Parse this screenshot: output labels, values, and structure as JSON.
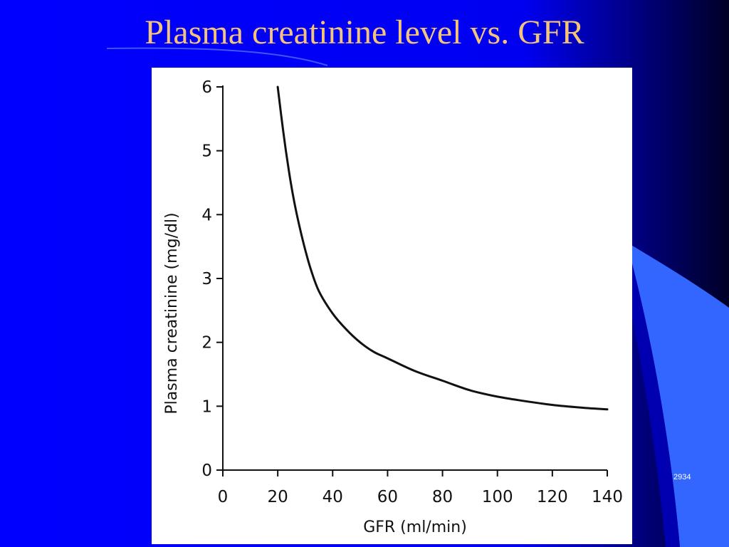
{
  "slide": {
    "title": "Plasma creatinine level vs. GFR",
    "slide_number": "2934",
    "colors": {
      "background": "#0000FF",
      "dark_edge": "#000033",
      "accent_shape": "#3366FF",
      "title": "#F4C37A",
      "text": "#FFFFFF"
    }
  },
  "chart_data": {
    "type": "line",
    "title": "",
    "xlabel": "GFR (ml/min)",
    "ylabel": "Plasma creatinine (mg/dl)",
    "xlim": [
      0,
      140
    ],
    "ylim": [
      0,
      6
    ],
    "xticks": [
      0,
      20,
      40,
      60,
      80,
      100,
      120,
      140
    ],
    "yticks": [
      0,
      1,
      2,
      3,
      4,
      5,
      6
    ],
    "xtick_labels": [
      "0",
      "20",
      "40",
      "60",
      "80",
      "100",
      "120",
      "140"
    ],
    "ytick_labels": [
      "0",
      "1",
      "2",
      "3",
      "4",
      "5",
      "6"
    ],
    "grid": false,
    "series": [
      {
        "color": "#111111",
        "x": [
          20,
          22,
          24,
          26,
          28,
          30,
          32,
          35,
          40,
          45,
          50,
          55,
          60,
          70,
          80,
          90,
          100,
          110,
          120,
          130,
          140
        ],
        "y": [
          6.0,
          5.3,
          4.7,
          4.2,
          3.8,
          3.45,
          3.15,
          2.8,
          2.45,
          2.2,
          2.0,
          1.85,
          1.75,
          1.55,
          1.4,
          1.25,
          1.15,
          1.08,
          1.02,
          0.98,
          0.95
        ]
      }
    ]
  }
}
